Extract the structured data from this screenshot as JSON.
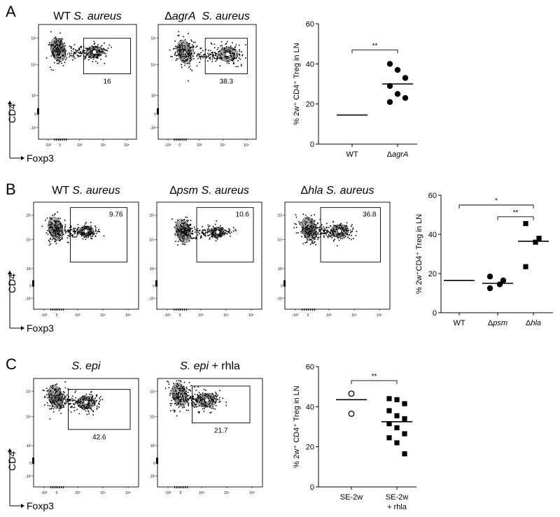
{
  "panels": [
    {
      "letter": "A",
      "flow_plots": [
        {
          "title_parts": [
            {
              "text": "WT ",
              "italic": false
            },
            {
              "text": "S. aureus",
              "italic": true
            }
          ],
          "gate_value": "16",
          "gate_label_pos": "below"
        },
        {
          "title_parts": [
            {
              "text": "Δ",
              "italic": false
            },
            {
              "text": "agrA",
              "italic": true
            },
            {
              "text": "  ",
              "italic": false
            },
            {
              "text": "S. aureus",
              "italic": true
            }
          ],
          "gate_value": "38.3",
          "gate_label_pos": "below"
        }
      ]
    },
    {
      "letter": "B",
      "flow_plots": [
        {
          "title_parts": [
            {
              "text": "WT ",
              "italic": false
            },
            {
              "text": "S. aureus",
              "italic": true
            }
          ],
          "gate_value": "9.76",
          "gate_label_pos": "inside"
        },
        {
          "title_parts": [
            {
              "text": "Δ",
              "italic": false
            },
            {
              "text": "psm",
              "italic": true
            },
            {
              "text": " ",
              "italic": false
            },
            {
              "text": "S. aureus",
              "italic": true
            }
          ],
          "gate_value": "10.6",
          "gate_label_pos": "inside"
        },
        {
          "title_parts": [
            {
              "text": "Δ",
              "italic": false
            },
            {
              "text": "hla",
              "italic": true
            },
            {
              "text": " ",
              "italic": false
            },
            {
              "text": "S. aureus",
              "italic": true
            }
          ],
          "gate_value": "36.8",
          "gate_label_pos": "inside"
        }
      ]
    },
    {
      "letter": "C",
      "flow_plots": [
        {
          "title_parts": [
            {
              "text": "S. epi",
              "italic": true
            }
          ],
          "gate_value": "42.6",
          "gate_label_pos": "below"
        },
        {
          "title_parts": [
            {
              "text": "S. epi",
              "italic": true
            },
            {
              "text": " + rhla",
              "italic": false
            }
          ],
          "gate_value": "21.7",
          "gate_label_pos": "below"
        }
      ]
    }
  ],
  "flow_axes": {
    "y_label": "CD4",
    "x_label": "Foxp3",
    "y_ticks": [
      "10⁵",
      "10⁴",
      "10³",
      "0",
      "-10³"
    ],
    "x_ticks": [
      "-10³",
      "0",
      "10³",
      "10⁴",
      "10⁵"
    ]
  },
  "chart_data": [
    {
      "type": "scatter",
      "panel": "A",
      "ylabel": "% 2w⁺ CD4⁺ Treg in LN",
      "ylim": [
        0,
        60
      ],
      "yticks": [
        0,
        20,
        40,
        60
      ],
      "categories": [
        {
          "parts": [
            {
              "text": "WT",
              "italic": false
            }
          ]
        },
        {
          "parts": [
            {
              "text": "Δ",
              "italic": false
            },
            {
              "text": "agrA",
              "italic": true
            }
          ]
        }
      ],
      "series": [
        {
          "marker": "none",
          "points": [],
          "mean": 14.5
        },
        {
          "marker": "circle",
          "points": [
            40,
            37,
            33,
            29,
            25,
            23,
            21
          ],
          "mean": 30
        }
      ],
      "significance": [
        {
          "from": 0,
          "to": 1,
          "label": "**",
          "y": 47
        }
      ]
    },
    {
      "type": "scatter",
      "panel": "B",
      "ylabel": "% 2w⁺CD4⁺ Treg in LN",
      "ylim": [
        0,
        60
      ],
      "yticks": [
        0,
        20,
        40,
        60
      ],
      "categories": [
        {
          "parts": [
            {
              "text": "WT",
              "italic": false
            }
          ]
        },
        {
          "parts": [
            {
              "text": "Δ",
              "italic": false
            },
            {
              "text": "psm",
              "italic": true
            }
          ]
        },
        {
          "parts": [
            {
              "text": "Δ",
              "italic": false
            },
            {
              "text": "hla",
              "italic": true
            }
          ]
        }
      ],
      "series": [
        {
          "marker": "none",
          "points": [],
          "mean": 16.5
        },
        {
          "marker": "circle",
          "points": [
            18.5,
            16.5,
            14.5,
            12.5
          ],
          "mean": 15
        },
        {
          "marker": "square",
          "points": [
            45.5,
            38,
            36,
            23.5
          ],
          "mean": 36.5
        }
      ],
      "significance": [
        {
          "from": 0,
          "to": 2,
          "label": "*",
          "y": 55
        },
        {
          "from": 1,
          "to": 2,
          "label": "**",
          "y": 49
        }
      ]
    },
    {
      "type": "scatter",
      "panel": "C",
      "ylabel": "% 2w⁺ CD4⁺ Treg in LN",
      "ylim": [
        0,
        60
      ],
      "yticks": [
        0,
        20,
        40,
        60
      ],
      "categories": [
        {
          "parts": [
            {
              "text": "SE-2w",
              "italic": false
            }
          ]
        },
        {
          "parts": [
            {
              "text": "SE-2w",
              "italic": false
            }
          ],
          "line2": "+ rhla"
        }
      ],
      "series": [
        {
          "marker": "open-circle",
          "points": [
            46.5,
            36.5
          ],
          "mean": 43.5
        },
        {
          "marker": "square",
          "points": [
            44,
            43.5,
            41.5,
            38,
            35.5,
            34,
            31.5,
            29.5,
            26.5,
            24.5,
            22,
            16.5
          ],
          "mean": 32.5
        }
      ],
      "significance": [
        {
          "from": 0,
          "to": 1,
          "label": "**",
          "y": 53
        }
      ]
    }
  ]
}
